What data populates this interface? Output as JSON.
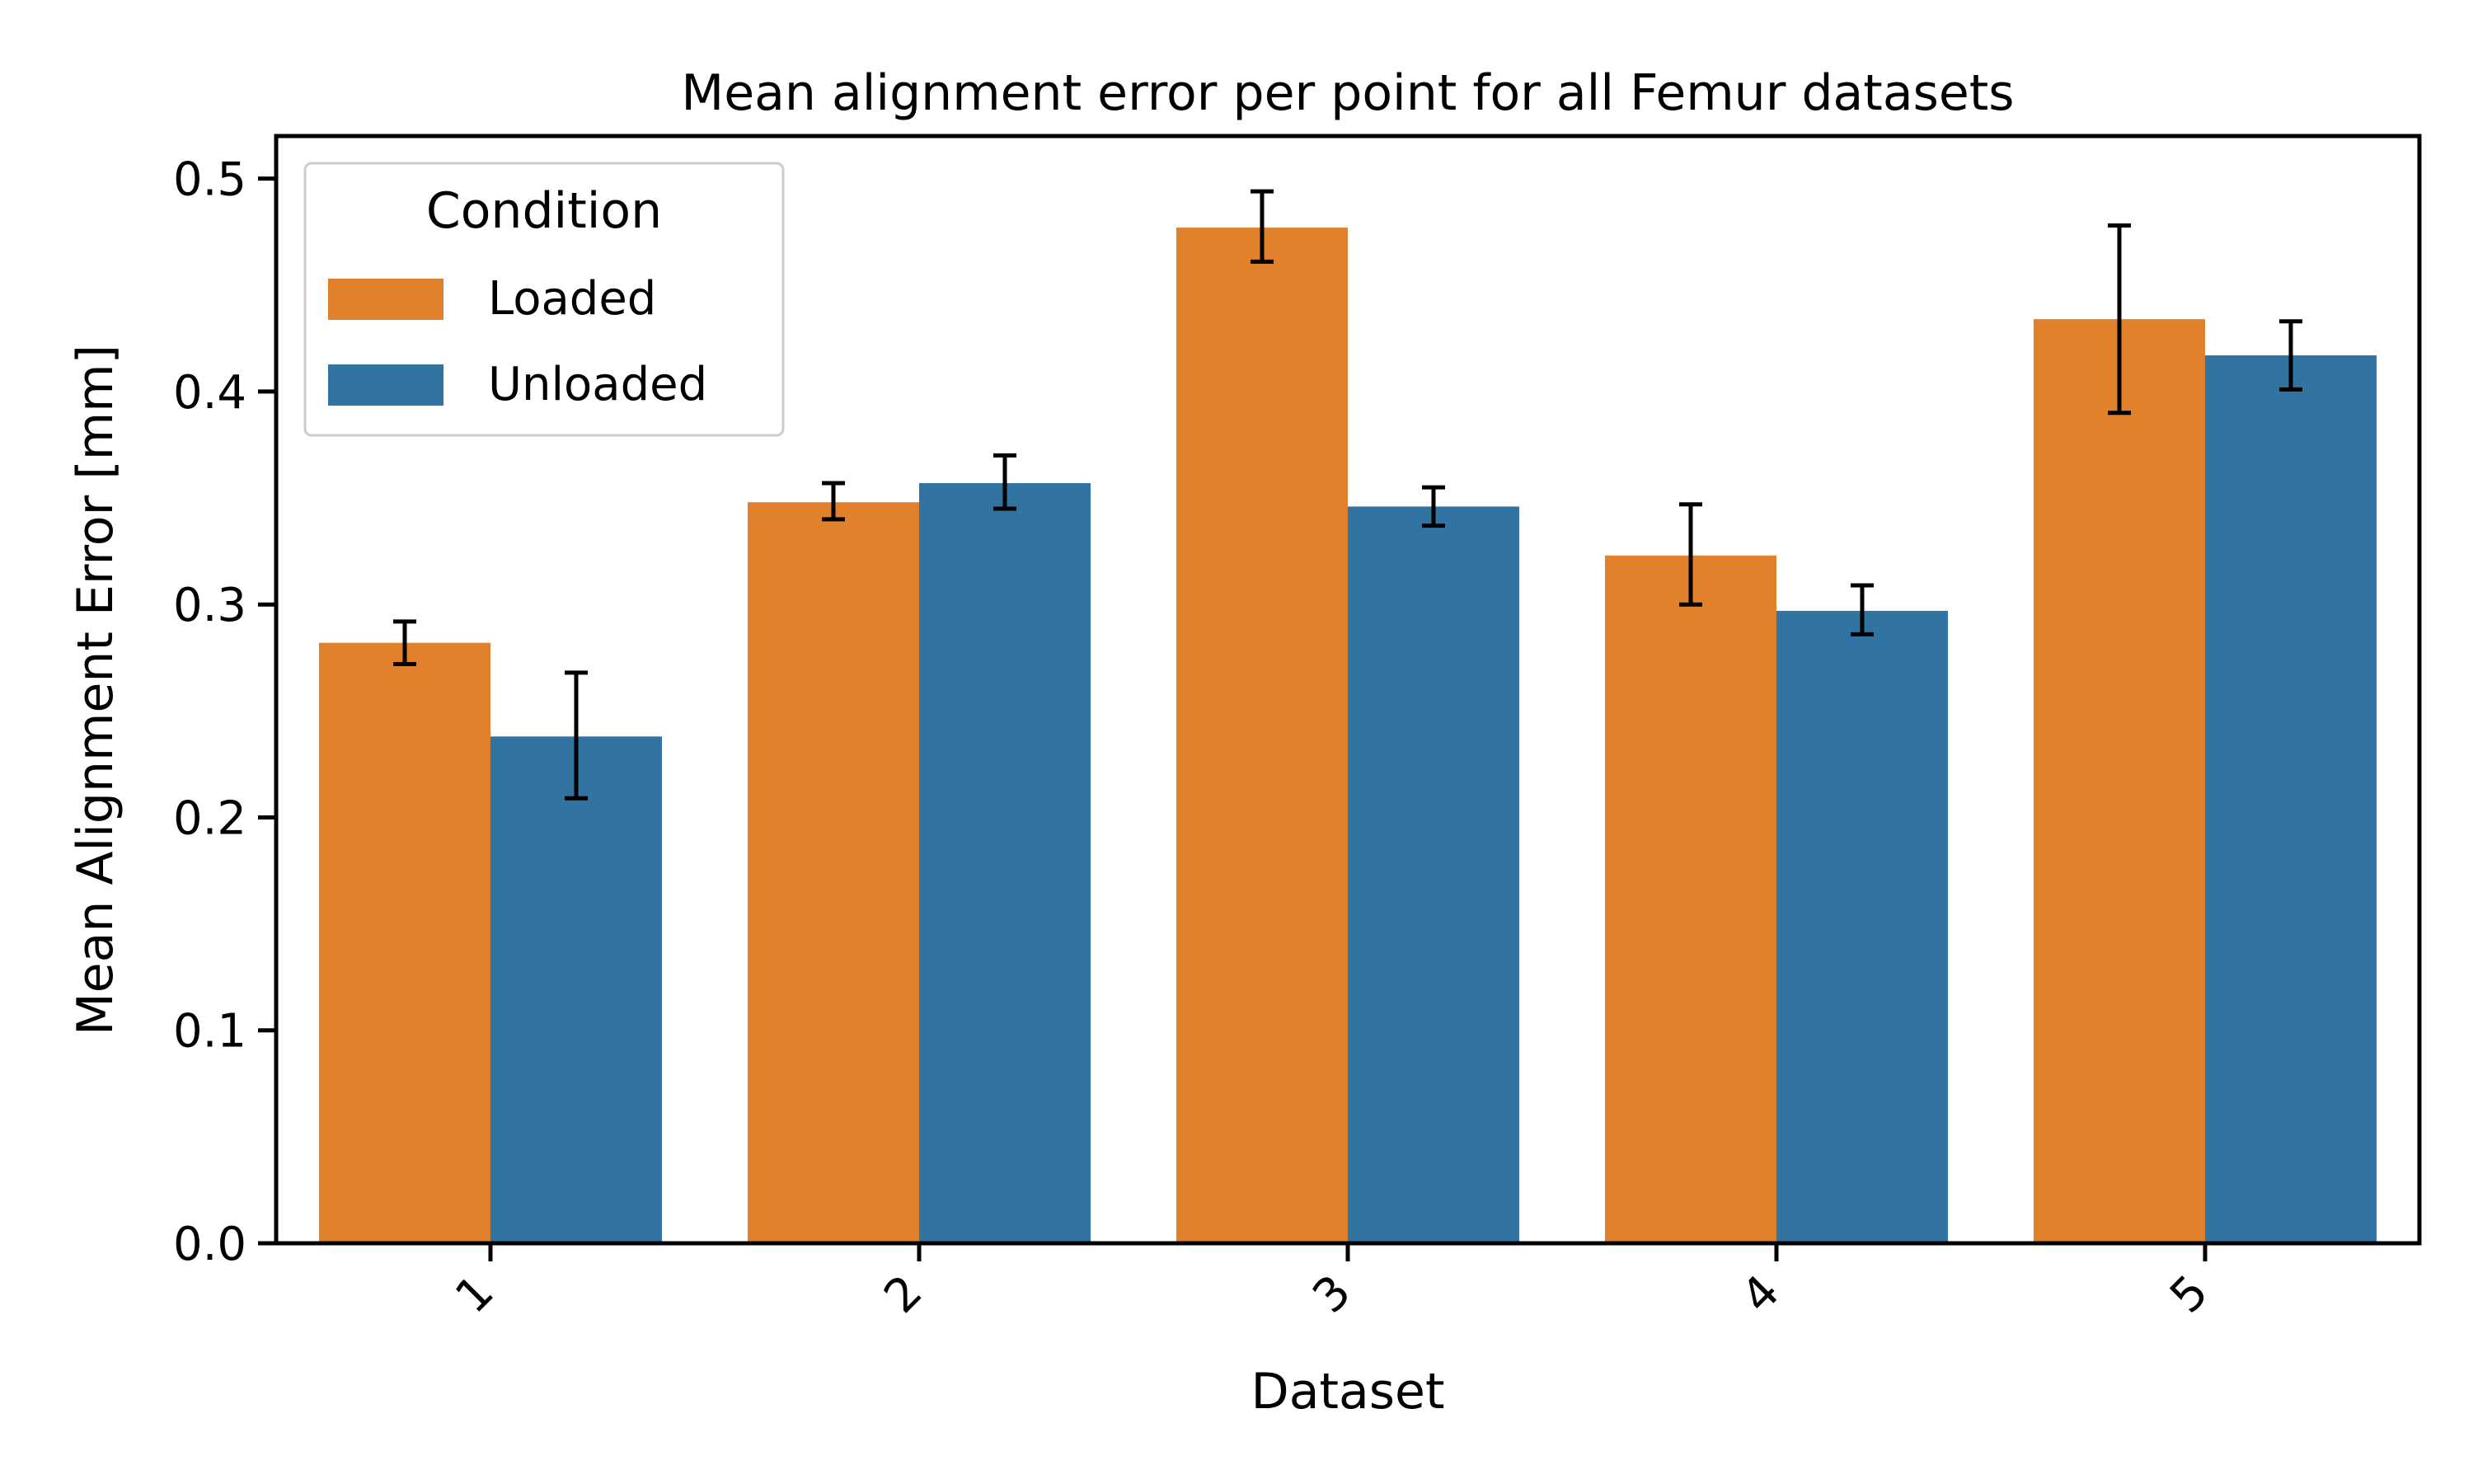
{
  "chart_data": {
    "type": "bar",
    "title": "Mean alignment error per point for all Femur datasets",
    "xlabel": "Dataset",
    "ylabel": "Mean Alignment Error [mm]",
    "categories": [
      "1",
      "2",
      "3",
      "4",
      "5"
    ],
    "ylim": [
      0,
      0.52
    ],
    "yticks": [
      "0.0",
      "0.1",
      "0.2",
      "0.3",
      "0.4",
      "0.5"
    ],
    "legend": {
      "title": "Condition",
      "placement": "top-left"
    },
    "grid": false,
    "series": [
      {
        "name": "Loaded",
        "color": "#e1812c",
        "values": [
          0.282,
          0.348,
          0.477,
          0.323,
          0.434
        ],
        "err_low": [
          0.272,
          0.34,
          0.461,
          0.3,
          0.39
        ],
        "err_high": [
          0.292,
          0.357,
          0.494,
          0.347,
          0.478
        ]
      },
      {
        "name": "Unloaded",
        "color": "#3274a1",
        "values": [
          0.238,
          0.357,
          0.346,
          0.297,
          0.417
        ],
        "err_low": [
          0.209,
          0.345,
          0.337,
          0.286,
          0.401
        ],
        "err_high": [
          0.268,
          0.37,
          0.355,
          0.309,
          0.433
        ]
      }
    ]
  }
}
